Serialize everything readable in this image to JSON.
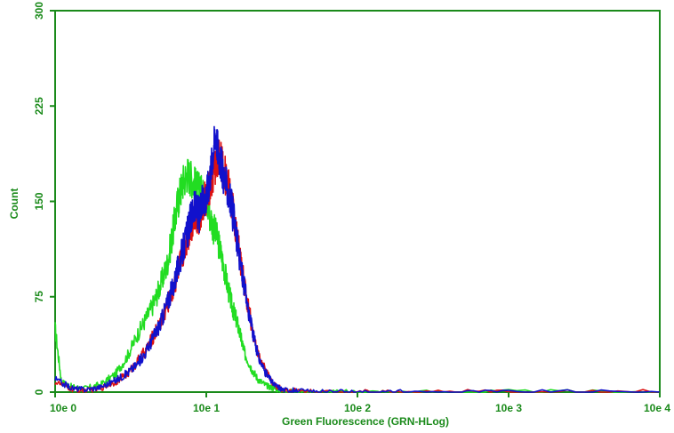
{
  "chart_data": {
    "type": "line",
    "title": "",
    "xlabel": "Green Fluorescence (GRN-HLog)",
    "ylabel": "Count",
    "x_scale": "log",
    "xlim": [
      1,
      10000
    ],
    "ylim": [
      0,
      300
    ],
    "x_ticks": [
      {
        "value": 1,
        "label": "10e 0"
      },
      {
        "value": 10,
        "label": "10e 1"
      },
      {
        "value": 100,
        "label": "10e 2"
      },
      {
        "value": 1000,
        "label": "10e 3"
      },
      {
        "value": 10000,
        "label": "10e 4"
      }
    ],
    "y_ticks": [
      {
        "value": 0,
        "label": "0"
      },
      {
        "value": 75,
        "label": "75"
      },
      {
        "value": 150,
        "label": "150"
      },
      {
        "value": 225,
        "label": "225"
      },
      {
        "value": 300,
        "label": "300"
      }
    ],
    "grid": false,
    "legend": "none",
    "colors": {
      "axis": "#1a8a1a",
      "green": "#22dd22",
      "red": "#dd1111",
      "blue": "#1111cc"
    },
    "series": [
      {
        "color": "#22dd22",
        "x": [
          1.0,
          1.1,
          1.3,
          1.6,
          2.0,
          2.5,
          3.0,
          3.5,
          4.0,
          4.5,
          5.0,
          5.5,
          6.0,
          6.5,
          7.0,
          7.5,
          8.0,
          8.5,
          9.0,
          9.5,
          10.0,
          11.0,
          12.0,
          13.0,
          14.0,
          15.0,
          16.0,
          17.0,
          18.0,
          20.0,
          22.0,
          25.0,
          28.0,
          32.0,
          40.0,
          60.0,
          100.0,
          200.0,
          1000.0,
          10000.0
        ],
        "y": [
          50,
          8,
          4,
          3,
          6,
          14,
          28,
          45,
          58,
          70,
          85,
          100,
          125,
          150,
          165,
          172,
          168,
          162,
          158,
          155,
          150,
          132,
          118,
          100,
          80,
          65,
          55,
          42,
          30,
          18,
          10,
          5,
          3,
          1,
          0,
          0,
          0,
          0,
          0,
          0
        ]
      },
      {
        "color": "#dd1111",
        "x": [
          1.0,
          1.3,
          1.6,
          2.0,
          2.5,
          3.0,
          3.5,
          4.0,
          4.5,
          5.0,
          5.5,
          6.0,
          6.5,
          7.0,
          7.5,
          8.0,
          8.5,
          9.0,
          9.5,
          10.0,
          10.5,
          11.0,
          11.5,
          12.0,
          12.5,
          13.0,
          14.0,
          15.0,
          16.0,
          17.0,
          18.0,
          20.0,
          22.0,
          25.0,
          28.0,
          32.0,
          40.0,
          60.0,
          100.0,
          200.0,
          1000.0,
          10000.0
        ],
        "y": [
          8,
          2,
          1,
          3,
          8,
          14,
          24,
          33,
          45,
          55,
          68,
          80,
          95,
          110,
          122,
          132,
          140,
          136,
          148,
          152,
          160,
          170,
          178,
          185,
          182,
          175,
          162,
          145,
          120,
          100,
          82,
          52,
          30,
          15,
          6,
          2,
          1,
          0,
          0,
          0,
          0,
          0
        ]
      },
      {
        "color": "#1111cc",
        "x": [
          1.0,
          1.3,
          1.6,
          2.0,
          2.5,
          3.0,
          3.5,
          4.0,
          4.5,
          5.0,
          5.5,
          6.0,
          6.5,
          7.0,
          7.5,
          8.0,
          8.5,
          9.0,
          9.5,
          10.0,
          10.5,
          11.0,
          11.5,
          12.0,
          12.5,
          13.0,
          14.0,
          15.0,
          16.0,
          17.0,
          18.0,
          20.0,
          22.0,
          25.0,
          28.0,
          32.0,
          40.0,
          60.0,
          100.0,
          200.0,
          1000.0,
          10000.0
        ],
        "y": [
          10,
          3,
          2,
          4,
          9,
          15,
          22,
          32,
          44,
          55,
          70,
          82,
          98,
          112,
          125,
          140,
          145,
          140,
          150,
          155,
          168,
          186,
          205,
          190,
          180,
          170,
          158,
          140,
          118,
          98,
          80,
          50,
          28,
          14,
          6,
          2,
          1,
          0,
          0,
          0,
          0,
          0
        ]
      }
    ]
  }
}
